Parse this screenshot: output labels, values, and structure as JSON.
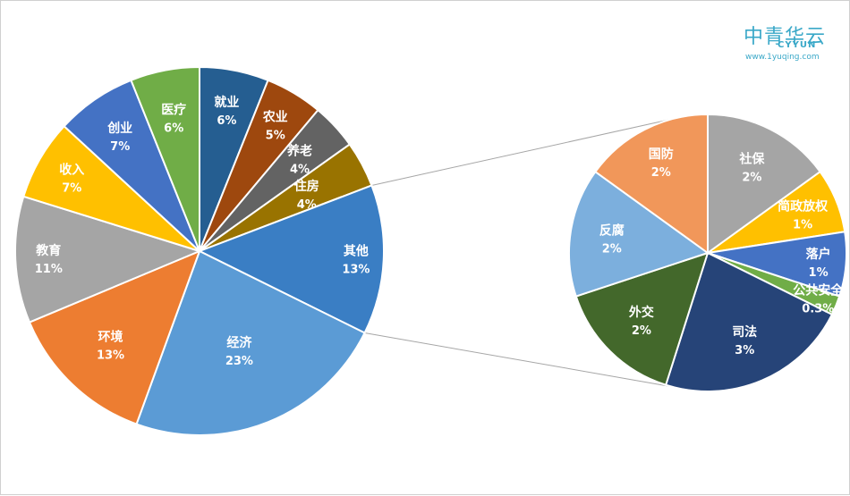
{
  "watermark": {
    "brand_cn": "中青华云",
    "brand_en": "CYYUN",
    "site": "www.1yuqing.com"
  },
  "colors": {
    "connector": "#a6a6a6",
    "slice_border": "#ffffff",
    "label_text": "#ffffff"
  },
  "chart_data": [
    {
      "type": "pie",
      "title": "",
      "start_angle_deg": 0,
      "direction": "clockwise",
      "slices": [
        {
          "label": "就业",
          "value": 6,
          "pct_label": "6%",
          "color": "#255e91"
        },
        {
          "label": "农业",
          "value": 5,
          "pct_label": "5%",
          "color": "#9e480e"
        },
        {
          "label": "养老",
          "value": 4,
          "pct_label": "4%",
          "color": "#636363"
        },
        {
          "label": "住房",
          "value": 4,
          "pct_label": "4%",
          "color": "#997300"
        },
        {
          "label": "其他",
          "value": 13,
          "pct_label": "13%",
          "color": "#3a7ec4"
        },
        {
          "label": "经济",
          "value": 23,
          "pct_label": "23%",
          "color": "#5b9bd5"
        },
        {
          "label": "环境",
          "value": 13,
          "pct_label": "13%",
          "color": "#ed7d31"
        },
        {
          "label": "教育",
          "value": 11,
          "pct_label": "11%",
          "color": "#a5a5a5"
        },
        {
          "label": "收入",
          "value": 7,
          "pct_label": "7%",
          "color": "#ffc000"
        },
        {
          "label": "创业",
          "value": 7,
          "pct_label": "7%",
          "color": "#4472c4"
        },
        {
          "label": "医疗",
          "value": 6,
          "pct_label": "6%",
          "color": "#70ad47"
        }
      ]
    },
    {
      "type": "pie",
      "title": "",
      "breakdown_of": "其他",
      "start_angle_deg": 0,
      "direction": "clockwise",
      "slices": [
        {
          "label": "社保",
          "value": 2,
          "pct_label": "2%",
          "color": "#a5a5a5"
        },
        {
          "label": "简政放权",
          "value": 1,
          "pct_label": "1%",
          "color": "#ffc000"
        },
        {
          "label": "落户",
          "value": 1,
          "pct_label": "1%",
          "color": "#4472c4"
        },
        {
          "label": "公共安全",
          "value": 0.3,
          "pct_label": "0.3%",
          "color": "#70ad47"
        },
        {
          "label": "司法",
          "value": 3,
          "pct_label": "3%",
          "color": "#264478"
        },
        {
          "label": "外交",
          "value": 2,
          "pct_label": "2%",
          "color": "#43682b"
        },
        {
          "label": "反腐",
          "value": 2,
          "pct_label": "2%",
          "color": "#7cafdd"
        },
        {
          "label": "国防",
          "value": 2,
          "pct_label": "2%",
          "color": "#f1975a"
        }
      ]
    }
  ]
}
